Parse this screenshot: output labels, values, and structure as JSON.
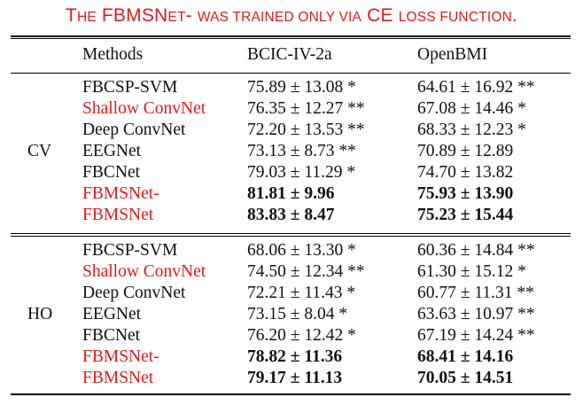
{
  "caption": {
    "part1": "T",
    "part2": "HE",
    "part3": " FBMSN",
    "part4": "ET",
    "part5": "- ",
    "part6": "WAS TRAINED ONLY VIA",
    "part7": " CE ",
    "part8": "LOSS FUNCTION",
    "part9": "."
  },
  "header": {
    "methods": "Methods",
    "col1": "BCIC-IV-2a",
    "col2": "OpenBMI"
  },
  "groups": [
    {
      "label": "CV",
      "rows": [
        {
          "method": "FBCSP-SVM",
          "red": false,
          "bold": false,
          "bcic": "75.89 ± 13.08 *",
          "openbmi": "64.61 ± 16.92 **"
        },
        {
          "method": "Shallow ConvNet",
          "red": true,
          "bold": false,
          "bcic": "76.35 ± 12.27 **",
          "openbmi": "67.08 ± 14.46 *"
        },
        {
          "method": "Deep ConvNet",
          "red": false,
          "bold": false,
          "bcic": "72.20 ± 13.53 **",
          "openbmi": "68.33 ± 12.23 *"
        },
        {
          "method": "EEGNet",
          "red": false,
          "bold": false,
          "bcic": "73.13 ± 8.73 **",
          "openbmi": "70.89 ± 12.89"
        },
        {
          "method": "FBCNet",
          "red": false,
          "bold": false,
          "bcic": "79.03 ± 11.29 *",
          "openbmi": "74.70 ± 13.82"
        },
        {
          "method": "FBMSNet-",
          "red": true,
          "bold": true,
          "bcic": "81.81 ± 9.96",
          "openbmi": "75.93 ± 13.90"
        },
        {
          "method": "FBMSNet",
          "red": true,
          "bold": true,
          "bcic": "83.83 ± 8.47",
          "openbmi": "75.23 ± 15.44"
        }
      ]
    },
    {
      "label": "HO",
      "rows": [
        {
          "method": "FBCSP-SVM",
          "red": false,
          "bold": false,
          "bcic": "68.06 ± 13.30 *",
          "openbmi": "60.36 ± 14.84 **"
        },
        {
          "method": "Shallow ConvNet",
          "red": true,
          "bold": false,
          "bcic": "74.50 ± 12.34 **",
          "openbmi": "61.30 ± 15.12 *"
        },
        {
          "method": "Deep ConvNet",
          "red": false,
          "bold": false,
          "bcic": "72.21 ± 11.43 *",
          "openbmi": "60.77 ± 11.31 **"
        },
        {
          "method": "EEGNet",
          "red": false,
          "bold": false,
          "bcic": "73.15 ± 8.04 *",
          "openbmi": "63.63 ± 10.97 **"
        },
        {
          "method": "FBCNet",
          "red": false,
          "bold": false,
          "bcic": "76.20 ± 12.42 *",
          "openbmi": "67.19 ± 14.24 **"
        },
        {
          "method": "FBMSNet-",
          "red": true,
          "bold": true,
          "bcic": "78.82 ± 11.36",
          "openbmi": "68.41 ± 14.16"
        },
        {
          "method": "FBMSNet",
          "red": true,
          "bold": true,
          "bcic": "79.17 ± 11.13",
          "openbmi": "70.05 ± 14.51"
        }
      ]
    }
  ],
  "colors": {
    "highlight": "#e01a1a",
    "text": "#111111",
    "rule": "#000000"
  }
}
